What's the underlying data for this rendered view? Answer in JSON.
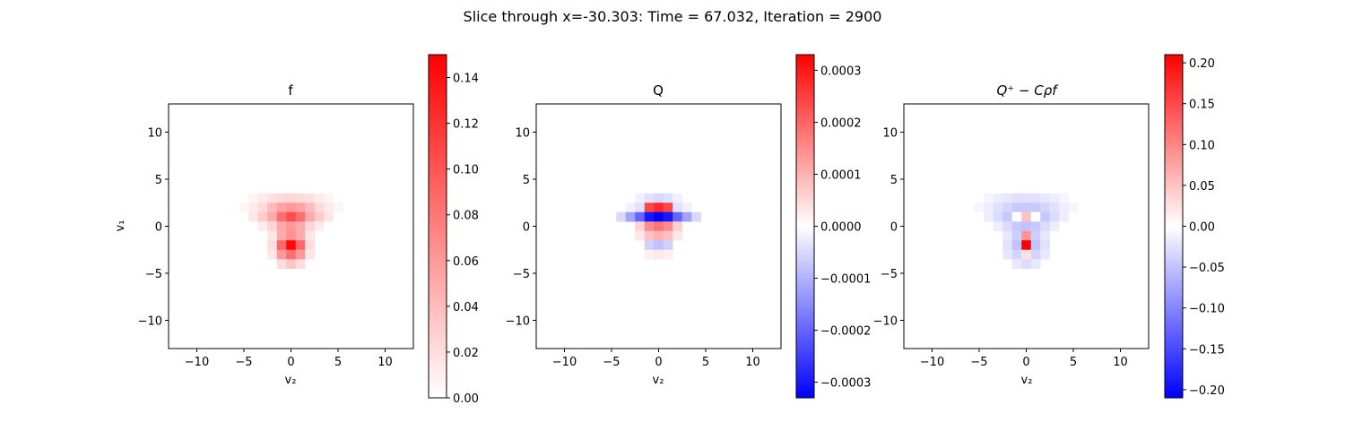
{
  "suptitle": "Slice through x=-30.303: Time = 67.032, Iteration = 2900",
  "chart_data": [
    {
      "type": "heatmap",
      "title": "f",
      "xlabel": "v₂",
      "ylabel": "v₁",
      "xlim": [
        -13,
        13
      ],
      "ylim": [
        -13,
        13
      ],
      "xticks": [
        "−10",
        "−5",
        "0",
        "5",
        "10"
      ],
      "yticks": [
        "−10",
        "−5",
        "0",
        "5",
        "10"
      ],
      "colormap": "bwr",
      "colorbar": {
        "range": [
          0,
          0.15
        ],
        "ticks": [
          "0.00",
          "0.02",
          "0.04",
          "0.06",
          "0.08",
          "0.10",
          "0.12",
          "0.14"
        ],
        "tick_values": [
          0,
          0.02,
          0.04,
          0.06,
          0.08,
          0.1,
          0.12,
          0.14
        ],
        "color_low": "#ffffff",
        "color_high": "#ff0000"
      },
      "grid": {
        "cell_size": 1,
        "cells": [
          [
            -4,
            3,
            0.006
          ],
          [
            -3,
            3,
            0.012
          ],
          [
            -2,
            3,
            0.018
          ],
          [
            -1,
            3,
            0.022
          ],
          [
            0,
            3,
            0.024
          ],
          [
            1,
            3,
            0.022
          ],
          [
            2,
            3,
            0.018
          ],
          [
            3,
            3,
            0.012
          ],
          [
            4,
            3,
            0.006
          ],
          [
            -5,
            2,
            0.006
          ],
          [
            -4,
            2,
            0.012
          ],
          [
            -3,
            2,
            0.022
          ],
          [
            -2,
            2,
            0.04
          ],
          [
            -1,
            2,
            0.055
          ],
          [
            0,
            2,
            0.06
          ],
          [
            1,
            2,
            0.055
          ],
          [
            2,
            2,
            0.04
          ],
          [
            3,
            2,
            0.022
          ],
          [
            4,
            2,
            0.012
          ],
          [
            5,
            2,
            0.006
          ],
          [
            -4,
            1,
            0.015
          ],
          [
            -3,
            1,
            0.03
          ],
          [
            -2,
            1,
            0.05
          ],
          [
            -1,
            1,
            0.085
          ],
          [
            0,
            1,
            0.105
          ],
          [
            1,
            1,
            0.085
          ],
          [
            2,
            1,
            0.05
          ],
          [
            3,
            1,
            0.03
          ],
          [
            4,
            1,
            0.015
          ],
          [
            -3,
            0,
            0.012
          ],
          [
            -2,
            0,
            0.025
          ],
          [
            -1,
            0,
            0.05
          ],
          [
            0,
            0,
            0.06
          ],
          [
            1,
            0,
            0.05
          ],
          [
            2,
            0,
            0.025
          ],
          [
            3,
            0,
            0.012
          ],
          [
            -2,
            -1,
            0.015
          ],
          [
            -1,
            -1,
            0.05
          ],
          [
            0,
            -1,
            0.065
          ],
          [
            1,
            -1,
            0.05
          ],
          [
            2,
            -1,
            0.015
          ],
          [
            -2,
            -2,
            0.02
          ],
          [
            -1,
            -2,
            0.09
          ],
          [
            0,
            -2,
            0.145
          ],
          [
            1,
            -2,
            0.09
          ],
          [
            2,
            -2,
            0.02
          ],
          [
            -2,
            -3,
            0.015
          ],
          [
            -1,
            -3,
            0.06
          ],
          [
            0,
            -3,
            0.085
          ],
          [
            1,
            -3,
            0.06
          ],
          [
            2,
            -3,
            0.015
          ],
          [
            -1,
            -4,
            0.02
          ],
          [
            0,
            -4,
            0.035
          ],
          [
            1,
            -4,
            0.02
          ]
        ]
      }
    },
    {
      "type": "heatmap",
      "title": "Q",
      "xlabel": "v₂",
      "ylabel": "",
      "xlim": [
        -13,
        13
      ],
      "ylim": [
        -13,
        13
      ],
      "xticks": [
        "−10",
        "−5",
        "0",
        "5",
        "10"
      ],
      "yticks": [
        "−10",
        "−5",
        "0",
        "5",
        "10"
      ],
      "colormap": "bwr",
      "colorbar": {
        "range": [
          -0.00033,
          0.00033
        ],
        "ticks": [
          "−0.0003",
          "−0.0002",
          "−0.0001",
          "0.0000",
          "0.0001",
          "0.0002",
          "0.0003"
        ],
        "tick_values": [
          -0.0003,
          -0.0002,
          -0.0001,
          0,
          0.0001,
          0.0002,
          0.0003
        ],
        "color_low": "#0000ff",
        "color_mid": "#ffffff",
        "color_high": "#ff0000"
      },
      "grid": {
        "cell_size": 1,
        "cells": [
          [
            -2,
            3,
            -2e-05
          ],
          [
            -1,
            3,
            -4e-05
          ],
          [
            0,
            3,
            -5e-05
          ],
          [
            1,
            3,
            -4e-05
          ],
          [
            2,
            3,
            -2e-05
          ],
          [
            -3,
            2,
            -2e-05
          ],
          [
            -2,
            2,
            -4e-05
          ],
          [
            -1,
            2,
            0.00024
          ],
          [
            0,
            2,
            0.00028
          ],
          [
            1,
            2,
            0.00024
          ],
          [
            2,
            2,
            -4e-05
          ],
          [
            3,
            2,
            -2e-05
          ],
          [
            -4,
            1,
            -5e-05
          ],
          [
            -3,
            1,
            -0.00012
          ],
          [
            -2,
            1,
            -0.0002
          ],
          [
            -1,
            1,
            -0.0003
          ],
          [
            0,
            1,
            -0.00033
          ],
          [
            1,
            1,
            -0.0003
          ],
          [
            2,
            1,
            -0.0002
          ],
          [
            3,
            1,
            -0.00012
          ],
          [
            4,
            1,
            -5e-05
          ],
          [
            -2,
            0,
            6e-05
          ],
          [
            -1,
            0,
            0.00015
          ],
          [
            0,
            0,
            0.00018
          ],
          [
            1,
            0,
            0.00015
          ],
          [
            2,
            0,
            6e-05
          ],
          [
            -2,
            -1,
            3e-05
          ],
          [
            -1,
            -1,
            8e-05
          ],
          [
            0,
            -1,
            0.0001
          ],
          [
            1,
            -1,
            8e-05
          ],
          [
            2,
            -1,
            3e-05
          ],
          [
            -1,
            -2,
            -6e-05
          ],
          [
            0,
            -2,
            -8e-05
          ],
          [
            1,
            -2,
            -6e-05
          ],
          [
            -1,
            -3,
            2e-05
          ],
          [
            0,
            -3,
            3e-05
          ],
          [
            1,
            -3,
            2e-05
          ]
        ]
      }
    },
    {
      "type": "heatmap",
      "title": "Q⁺ − Cρf",
      "xlabel": "v₂",
      "ylabel": "",
      "xlim": [
        -13,
        13
      ],
      "ylim": [
        -13,
        13
      ],
      "xticks": [
        "−10",
        "−5",
        "0",
        "5",
        "10"
      ],
      "yticks": [
        "−10",
        "−5",
        "0",
        "5",
        "10"
      ],
      "colormap": "bwr",
      "colorbar": {
        "range": [
          -0.21,
          0.21
        ],
        "ticks": [
          "−0.20",
          "−0.15",
          "−0.10",
          "−0.05",
          "0.00",
          "0.05",
          "0.10",
          "0.15",
          "0.20"
        ],
        "tick_values": [
          -0.2,
          -0.15,
          -0.1,
          -0.05,
          0,
          0.05,
          0.1,
          0.15,
          0.2
        ],
        "color_low": "#0000ff",
        "color_mid": "#ffffff",
        "color_high": "#ff0000"
      },
      "grid": {
        "cell_size": 1,
        "cells": [
          [
            -4,
            3,
            -0.008
          ],
          [
            -3,
            3,
            -0.015
          ],
          [
            -2,
            3,
            -0.02
          ],
          [
            -1,
            3,
            -0.025
          ],
          [
            0,
            3,
            -0.025
          ],
          [
            1,
            3,
            -0.025
          ],
          [
            2,
            3,
            -0.02
          ],
          [
            3,
            3,
            -0.015
          ],
          [
            4,
            3,
            -0.008
          ],
          [
            -5,
            2,
            -0.008
          ],
          [
            -4,
            2,
            -0.015
          ],
          [
            -3,
            2,
            -0.025
          ],
          [
            -2,
            2,
            -0.035
          ],
          [
            -1,
            2,
            -0.045
          ],
          [
            0,
            2,
            -0.045
          ],
          [
            1,
            2,
            -0.045
          ],
          [
            2,
            2,
            -0.035
          ],
          [
            3,
            2,
            -0.025
          ],
          [
            4,
            2,
            -0.015
          ],
          [
            5,
            2,
            -0.008
          ],
          [
            -4,
            1,
            -0.015
          ],
          [
            -3,
            1,
            -0.03
          ],
          [
            -2,
            1,
            -0.045
          ],
          [
            -1,
            1,
            0.0
          ],
          [
            0,
            1,
            0.05
          ],
          [
            1,
            1,
            0.0
          ],
          [
            2,
            1,
            -0.045
          ],
          [
            3,
            1,
            -0.03
          ],
          [
            4,
            1,
            -0.015
          ],
          [
            -3,
            0,
            -0.015
          ],
          [
            -2,
            0,
            -0.03
          ],
          [
            -1,
            0,
            -0.045
          ],
          [
            0,
            0,
            -0.05
          ],
          [
            1,
            0,
            -0.045
          ],
          [
            2,
            0,
            -0.03
          ],
          [
            3,
            0,
            -0.015
          ],
          [
            -2,
            -1,
            -0.02
          ],
          [
            -1,
            -1,
            -0.04
          ],
          [
            0,
            -1,
            0.09
          ],
          [
            1,
            -1,
            -0.04
          ],
          [
            2,
            -1,
            -0.02
          ],
          [
            -2,
            -2,
            -0.025
          ],
          [
            -1,
            -2,
            -0.05
          ],
          [
            0,
            -2,
            0.21
          ],
          [
            1,
            -2,
            -0.05
          ],
          [
            2,
            -2,
            -0.025
          ],
          [
            -2,
            -3,
            -0.02
          ],
          [
            -1,
            -3,
            -0.035
          ],
          [
            0,
            -3,
            0.025
          ],
          [
            1,
            -3,
            -0.035
          ],
          [
            2,
            -3,
            -0.02
          ],
          [
            -1,
            -4,
            -0.02
          ],
          [
            0,
            -4,
            -0.03
          ],
          [
            1,
            -4,
            -0.02
          ]
        ]
      }
    }
  ]
}
